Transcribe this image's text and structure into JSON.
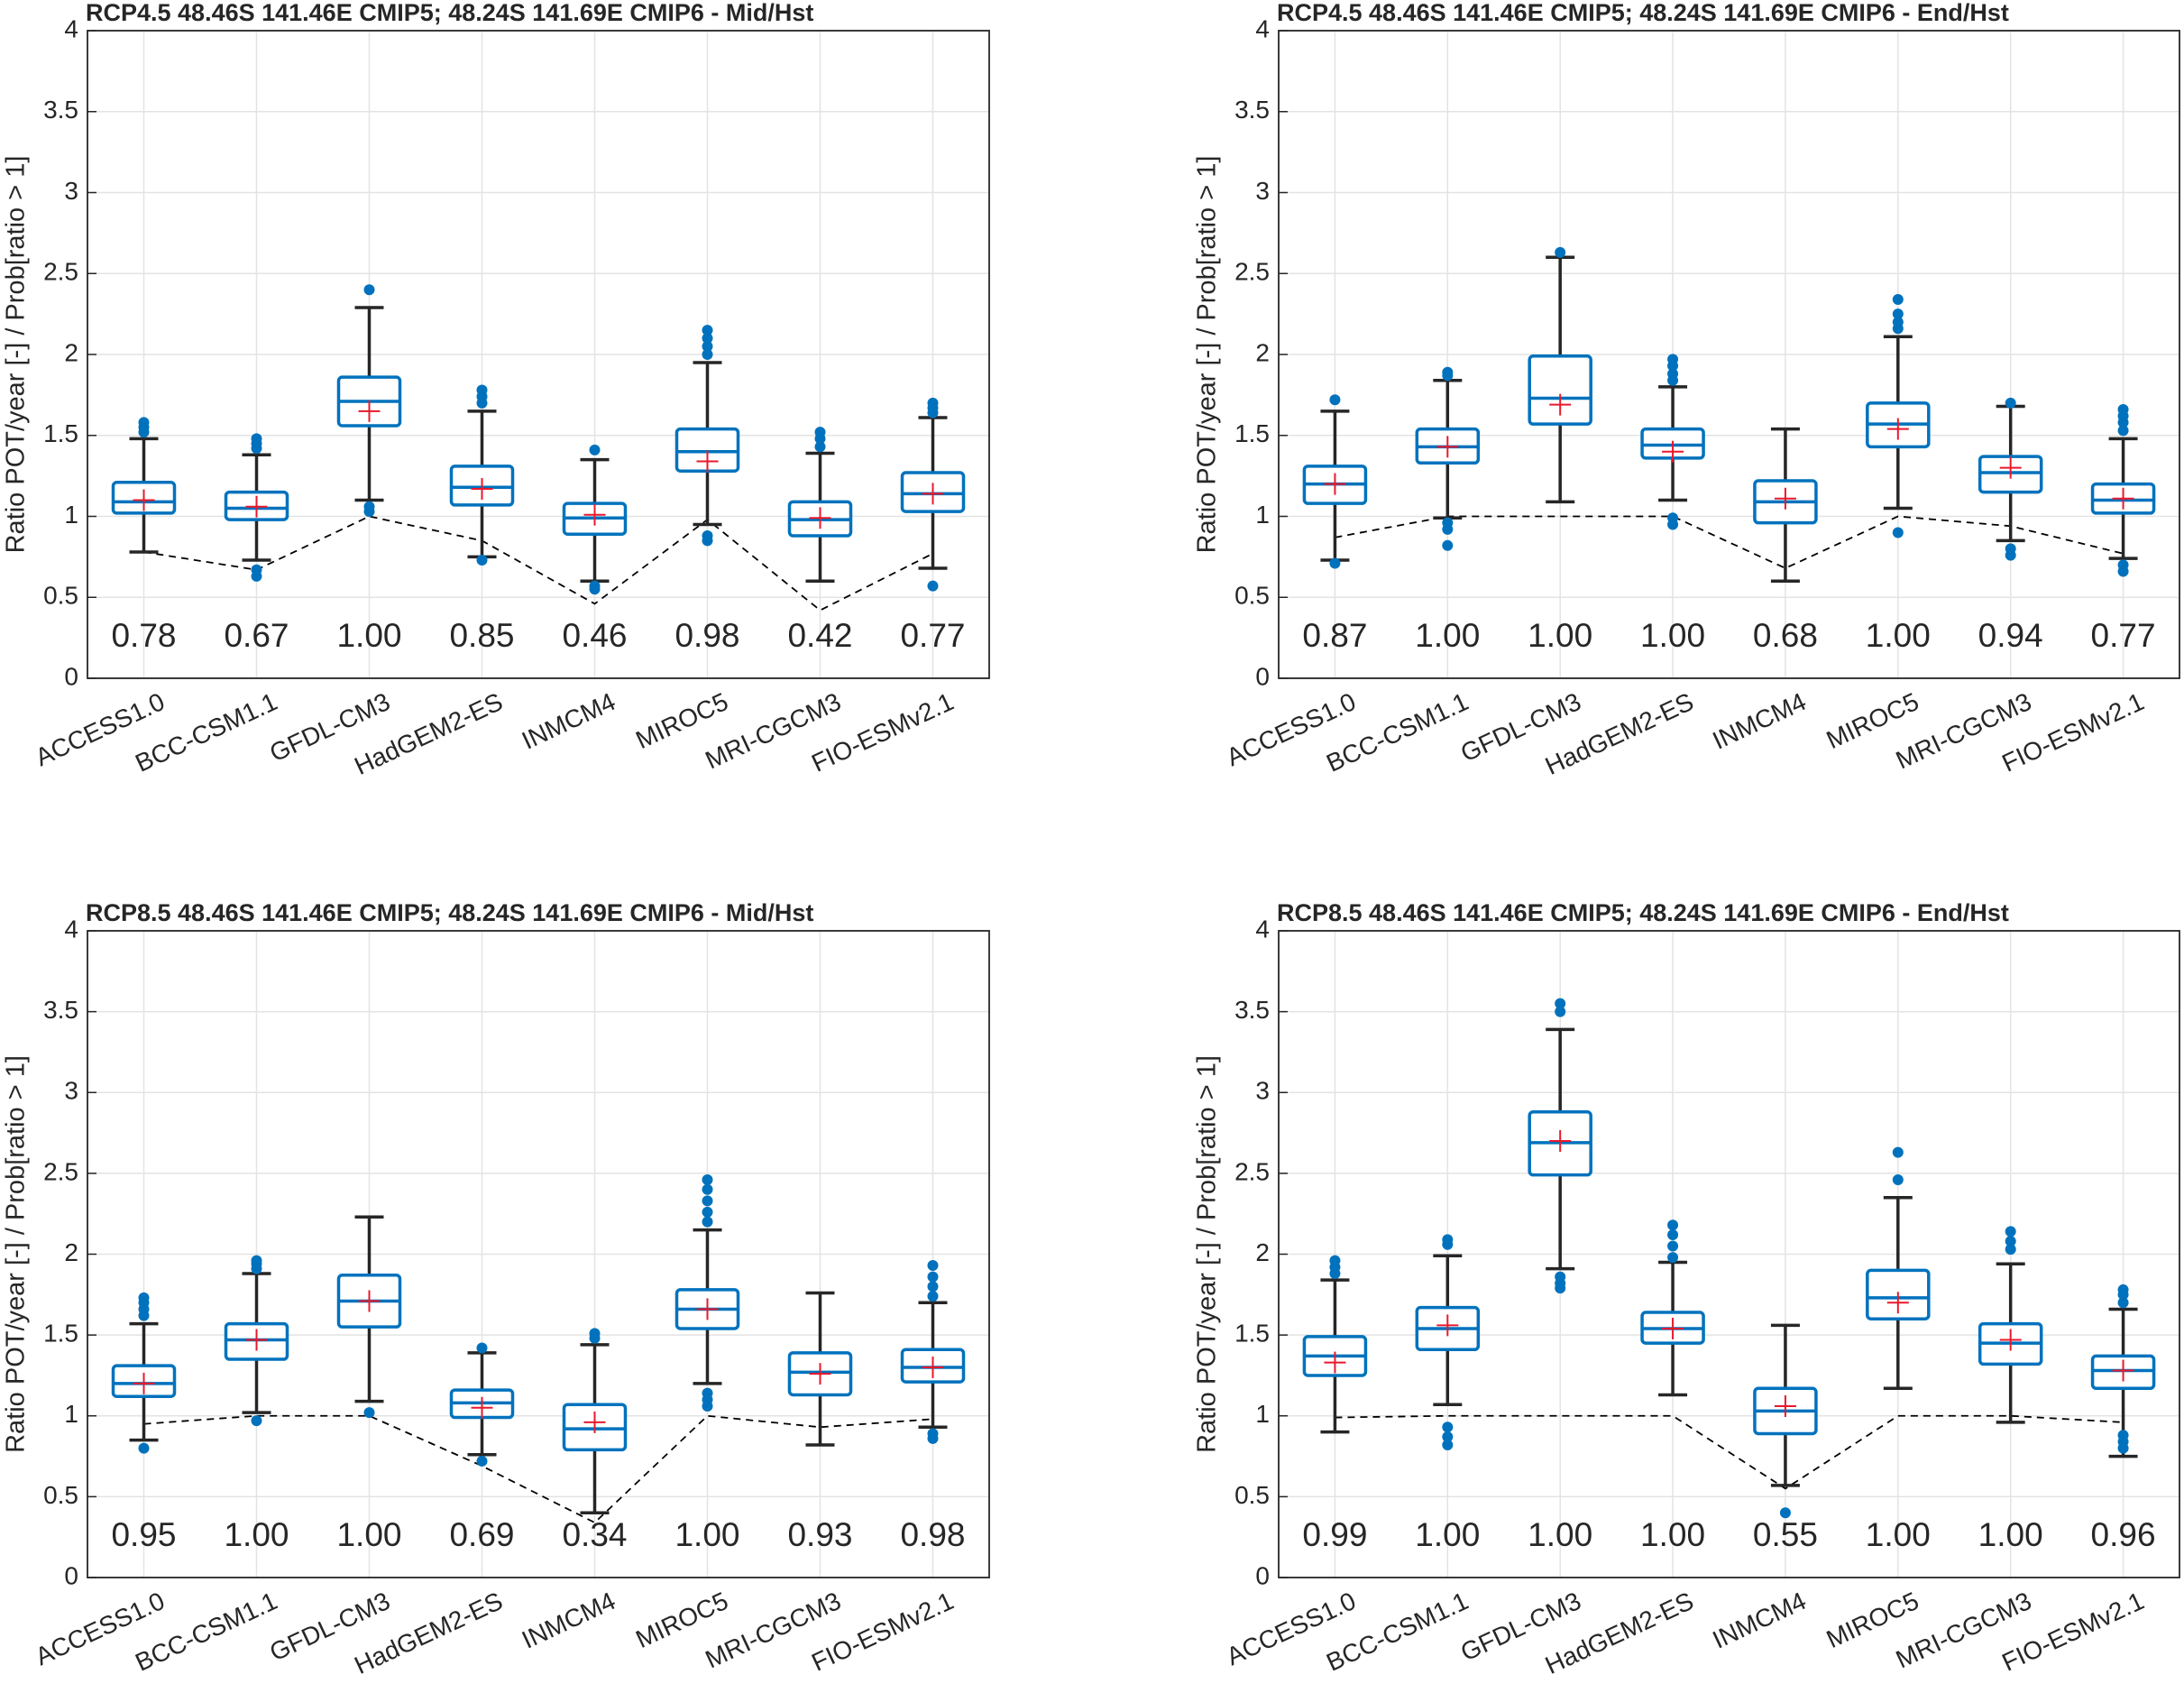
{
  "chart_data": [
    {
      "type": "box",
      "title": "RCP4.5  48.46S 141.46E CMIP5; 48.24S 141.69E CMIP6 - Mid/Hst",
      "y_label": "Ratio POT/year [-] / Prob[ratio > 1]",
      "categories": [
        "ACCESS1.0",
        "BCC-CSM1.1",
        "GFDL-CM3",
        "HadGEM2-ES",
        "INMCM4",
        "MIROC5",
        "MRI-CGCM3",
        "FIO-ESMv2.1"
      ],
      "ylim": [
        0,
        4
      ],
      "yticks": [
        0,
        0.5,
        1,
        1.5,
        2,
        2.5,
        3,
        3.5,
        4
      ],
      "grid": true,
      "color": "#0072bd",
      "whisker_color": "#262626",
      "mean_color": "#e8192c",
      "line_color": "#000000",
      "boxes": [
        {
          "whisker_low": 0.78,
          "q1": 1.02,
          "median": 1.09,
          "q3": 1.21,
          "whisker_high": 1.48,
          "mean": 1.1,
          "outliers": [
            1.52,
            1.55,
            1.58
          ]
        },
        {
          "whisker_low": 0.73,
          "q1": 0.98,
          "median": 1.05,
          "q3": 1.15,
          "whisker_high": 1.38,
          "mean": 1.06,
          "outliers": [
            0.63,
            0.67,
            1.42,
            1.45,
            1.48
          ]
        },
        {
          "whisker_low": 1.1,
          "q1": 1.56,
          "median": 1.71,
          "q3": 1.86,
          "whisker_high": 2.29,
          "mean": 1.65,
          "outliers": [
            1.03,
            1.06,
            2.4
          ]
        },
        {
          "whisker_low": 0.75,
          "q1": 1.07,
          "median": 1.18,
          "q3": 1.31,
          "whisker_high": 1.65,
          "mean": 1.17,
          "outliers": [
            0.73,
            1.7,
            1.74,
            1.78
          ]
        },
        {
          "whisker_low": 0.6,
          "q1": 0.89,
          "median": 0.99,
          "q3": 1.08,
          "whisker_high": 1.35,
          "mean": 1.01,
          "outliers": [
            0.55,
            0.57,
            1.41
          ]
        },
        {
          "whisker_low": 0.95,
          "q1": 1.28,
          "median": 1.4,
          "q3": 1.54,
          "whisker_high": 1.95,
          "mean": 1.34,
          "outliers": [
            0.85,
            0.88,
            2.0,
            2.05,
            2.1,
            2.15
          ]
        },
        {
          "whisker_low": 0.6,
          "q1": 0.88,
          "median": 0.98,
          "q3": 1.09,
          "whisker_high": 1.39,
          "mean": 0.99,
          "outliers": [
            1.43,
            1.48,
            1.52
          ]
        },
        {
          "whisker_low": 0.68,
          "q1": 1.03,
          "median": 1.14,
          "q3": 1.27,
          "whisker_high": 1.61,
          "mean": 1.14,
          "outliers": [
            0.57,
            1.64,
            1.67,
            1.7
          ]
        }
      ],
      "probability": {
        "values": [
          0.78,
          0.67,
          1.0,
          0.85,
          0.46,
          0.98,
          0.42,
          0.77
        ],
        "value_labels": [
          "0.78",
          "0.67",
          "1.00",
          "0.85",
          "0.46",
          "0.98",
          "0.42",
          "0.77"
        ]
      }
    },
    {
      "type": "box",
      "title": "RCP4.5  48.46S 141.46E CMIP5; 48.24S 141.69E CMIP6 - End/Hst",
      "y_label": "Ratio POT/year [-] / Prob[ratio > 1]",
      "categories": [
        "ACCESS1.0",
        "BCC-CSM1.1",
        "GFDL-CM3",
        "HadGEM2-ES",
        "INMCM4",
        "MIROC5",
        "MRI-CGCM3",
        "FIO-ESMv2.1"
      ],
      "ylim": [
        0,
        4
      ],
      "yticks": [
        0,
        0.5,
        1,
        1.5,
        2,
        2.5,
        3,
        3.5,
        4
      ],
      "grid": true,
      "color": "#0072bd",
      "whisker_color": "#262626",
      "mean_color": "#e8192c",
      "line_color": "#000000",
      "boxes": [
        {
          "whisker_low": 0.73,
          "q1": 1.08,
          "median": 1.2,
          "q3": 1.31,
          "whisker_high": 1.65,
          "mean": 1.2,
          "outliers": [
            0.71,
            1.72
          ]
        },
        {
          "whisker_low": 0.99,
          "q1": 1.33,
          "median": 1.43,
          "q3": 1.54,
          "whisker_high": 1.84,
          "mean": 1.43,
          "outliers": [
            0.82,
            0.92,
            0.96,
            1.87,
            1.89
          ]
        },
        {
          "whisker_low": 1.09,
          "q1": 1.57,
          "median": 1.73,
          "q3": 1.99,
          "whisker_high": 2.6,
          "mean": 1.69,
          "outliers": [
            2.63
          ]
        },
        {
          "whisker_low": 1.1,
          "q1": 1.36,
          "median": 1.44,
          "q3": 1.54,
          "whisker_high": 1.8,
          "mean": 1.4,
          "outliers": [
            0.95,
            0.99,
            1.84,
            1.88,
            1.93,
            1.97
          ]
        },
        {
          "whisker_low": 0.6,
          "q1": 0.96,
          "median": 1.09,
          "q3": 1.22,
          "whisker_high": 1.54,
          "mean": 1.11,
          "outliers": []
        },
        {
          "whisker_low": 1.05,
          "q1": 1.43,
          "median": 1.57,
          "q3": 1.7,
          "whisker_high": 2.11,
          "mean": 1.54,
          "outliers": [
            0.9,
            2.16,
            2.2,
            2.25,
            2.34
          ]
        },
        {
          "whisker_low": 0.85,
          "q1": 1.15,
          "median": 1.27,
          "q3": 1.37,
          "whisker_high": 1.68,
          "mean": 1.3,
          "outliers": [
            0.76,
            0.8,
            1.7
          ]
        },
        {
          "whisker_low": 0.74,
          "q1": 1.02,
          "median": 1.1,
          "q3": 1.2,
          "whisker_high": 1.48,
          "mean": 1.11,
          "outliers": [
            0.66,
            0.7,
            1.53,
            1.58,
            1.62,
            1.66
          ]
        }
      ],
      "probability": {
        "values": [
          0.87,
          1.0,
          1.0,
          1.0,
          0.68,
          1.0,
          0.94,
          0.77
        ],
        "value_labels": [
          "0.87",
          "1.00",
          "1.00",
          "1.00",
          "0.68",
          "1.00",
          "0.94",
          "0.77"
        ]
      }
    },
    {
      "type": "box",
      "title": "RCP8.5  48.46S 141.46E CMIP5; 48.24S 141.69E CMIP6 - Mid/Hst",
      "y_label": "Ratio POT/year [-] / Prob[ratio > 1]",
      "categories": [
        "ACCESS1.0",
        "BCC-CSM1.1",
        "GFDL-CM3",
        "HadGEM2-ES",
        "INMCM4",
        "MIROC5",
        "MRI-CGCM3",
        "FIO-ESMv2.1"
      ],
      "ylim": [
        0,
        4
      ],
      "yticks": [
        0,
        0.5,
        1,
        1.5,
        2,
        2.5,
        3,
        3.5,
        4
      ],
      "grid": true,
      "color": "#0072bd",
      "whisker_color": "#262626",
      "mean_color": "#e8192c",
      "line_color": "#000000",
      "boxes": [
        {
          "whisker_low": 0.85,
          "q1": 1.12,
          "median": 1.2,
          "q3": 1.31,
          "whisker_high": 1.57,
          "mean": 1.2,
          "outliers": [
            0.8,
            1.62,
            1.66,
            1.7,
            1.73
          ]
        },
        {
          "whisker_low": 1.02,
          "q1": 1.35,
          "median": 1.47,
          "q3": 1.57,
          "whisker_high": 1.88,
          "mean": 1.47,
          "outliers": [
            0.97,
            1.91,
            1.94,
            1.96
          ]
        },
        {
          "whisker_low": 1.09,
          "q1": 1.55,
          "median": 1.71,
          "q3": 1.87,
          "whisker_high": 2.23,
          "mean": 1.71,
          "outliers": [
            1.02
          ]
        },
        {
          "whisker_low": 0.76,
          "q1": 0.99,
          "median": 1.08,
          "q3": 1.16,
          "whisker_high": 1.39,
          "mean": 1.05,
          "outliers": [
            0.72,
            1.42
          ]
        },
        {
          "whisker_low": 0.4,
          "q1": 0.79,
          "median": 0.92,
          "q3": 1.07,
          "whisker_high": 1.44,
          "mean": 0.96,
          "outliers": [
            1.48,
            1.51
          ]
        },
        {
          "whisker_low": 1.2,
          "q1": 1.54,
          "median": 1.66,
          "q3": 1.78,
          "whisker_high": 2.15,
          "mean": 1.66,
          "outliers": [
            1.06,
            1.1,
            1.14,
            2.2,
            2.26,
            2.33,
            2.4,
            2.46
          ]
        },
        {
          "whisker_low": 0.82,
          "q1": 1.13,
          "median": 1.27,
          "q3": 1.39,
          "whisker_high": 1.76,
          "mean": 1.26,
          "outliers": []
        },
        {
          "whisker_low": 0.93,
          "q1": 1.21,
          "median": 1.3,
          "q3": 1.41,
          "whisker_high": 1.7,
          "mean": 1.3,
          "outliers": [
            0.86,
            0.89,
            1.74,
            1.8,
            1.86,
            1.93
          ]
        }
      ],
      "probability": {
        "values": [
          0.95,
          1.0,
          1.0,
          0.69,
          0.34,
          1.0,
          0.93,
          0.98
        ],
        "value_labels": [
          "0.95",
          "1.00",
          "1.00",
          "0.69",
          "0.34",
          "1.00",
          "0.93",
          "0.98"
        ]
      }
    },
    {
      "type": "box",
      "title": "RCP8.5  48.46S 141.46E CMIP5; 48.24S 141.69E CMIP6 - End/Hst",
      "y_label": "Ratio POT/year [-] / Prob[ratio > 1]",
      "categories": [
        "ACCESS1.0",
        "BCC-CSM1.1",
        "GFDL-CM3",
        "HadGEM2-ES",
        "INMCM4",
        "MIROC5",
        "MRI-CGCM3",
        "FIO-ESMv2.1"
      ],
      "ylim": [
        0,
        4
      ],
      "yticks": [
        0,
        0.5,
        1,
        1.5,
        2,
        2.5,
        3,
        3.5,
        4
      ],
      "grid": true,
      "color": "#0072bd",
      "whisker_color": "#262626",
      "mean_color": "#e8192c",
      "line_color": "#000000",
      "boxes": [
        {
          "whisker_low": 0.9,
          "q1": 1.25,
          "median": 1.37,
          "q3": 1.49,
          "whisker_high": 1.84,
          "mean": 1.33,
          "outliers": [
            1.88,
            1.92,
            1.96
          ]
        },
        {
          "whisker_low": 1.07,
          "q1": 1.41,
          "median": 1.54,
          "q3": 1.67,
          "whisker_high": 1.99,
          "mean": 1.56,
          "outliers": [
            0.82,
            0.87,
            0.93,
            2.06,
            2.09
          ]
        },
        {
          "whisker_low": 1.91,
          "q1": 2.49,
          "median": 2.69,
          "q3": 2.88,
          "whisker_high": 3.39,
          "mean": 2.7,
          "outliers": [
            1.79,
            1.82,
            1.86,
            3.5,
            3.55
          ]
        },
        {
          "whisker_low": 1.13,
          "q1": 1.45,
          "median": 1.54,
          "q3": 1.64,
          "whisker_high": 1.95,
          "mean": 1.54,
          "outliers": [
            1.98,
            2.05,
            2.12,
            2.18
          ]
        },
        {
          "whisker_low": 0.57,
          "q1": 0.89,
          "median": 1.03,
          "q3": 1.17,
          "whisker_high": 1.56,
          "mean": 1.06,
          "outliers": [
            0.4
          ]
        },
        {
          "whisker_low": 1.17,
          "q1": 1.6,
          "median": 1.73,
          "q3": 1.9,
          "whisker_high": 2.35,
          "mean": 1.7,
          "outliers": [
            2.46,
            2.63
          ]
        },
        {
          "whisker_low": 0.96,
          "q1": 1.32,
          "median": 1.45,
          "q3": 1.57,
          "whisker_high": 1.94,
          "mean": 1.47,
          "outliers": [
            2.03,
            2.08,
            2.14
          ]
        },
        {
          "whisker_low": 0.75,
          "q1": 1.17,
          "median": 1.28,
          "q3": 1.37,
          "whisker_high": 1.66,
          "mean": 1.28,
          "outliers": [
            0.8,
            0.84,
            0.88,
            1.7,
            1.75,
            1.78
          ]
        }
      ],
      "probability": {
        "values": [
          0.99,
          1.0,
          1.0,
          1.0,
          0.55,
          1.0,
          1.0,
          0.96
        ],
        "value_labels": [
          "0.99",
          "1.00",
          "1.00",
          "1.00",
          "0.55",
          "1.00",
          "1.00",
          "0.96"
        ]
      }
    }
  ]
}
